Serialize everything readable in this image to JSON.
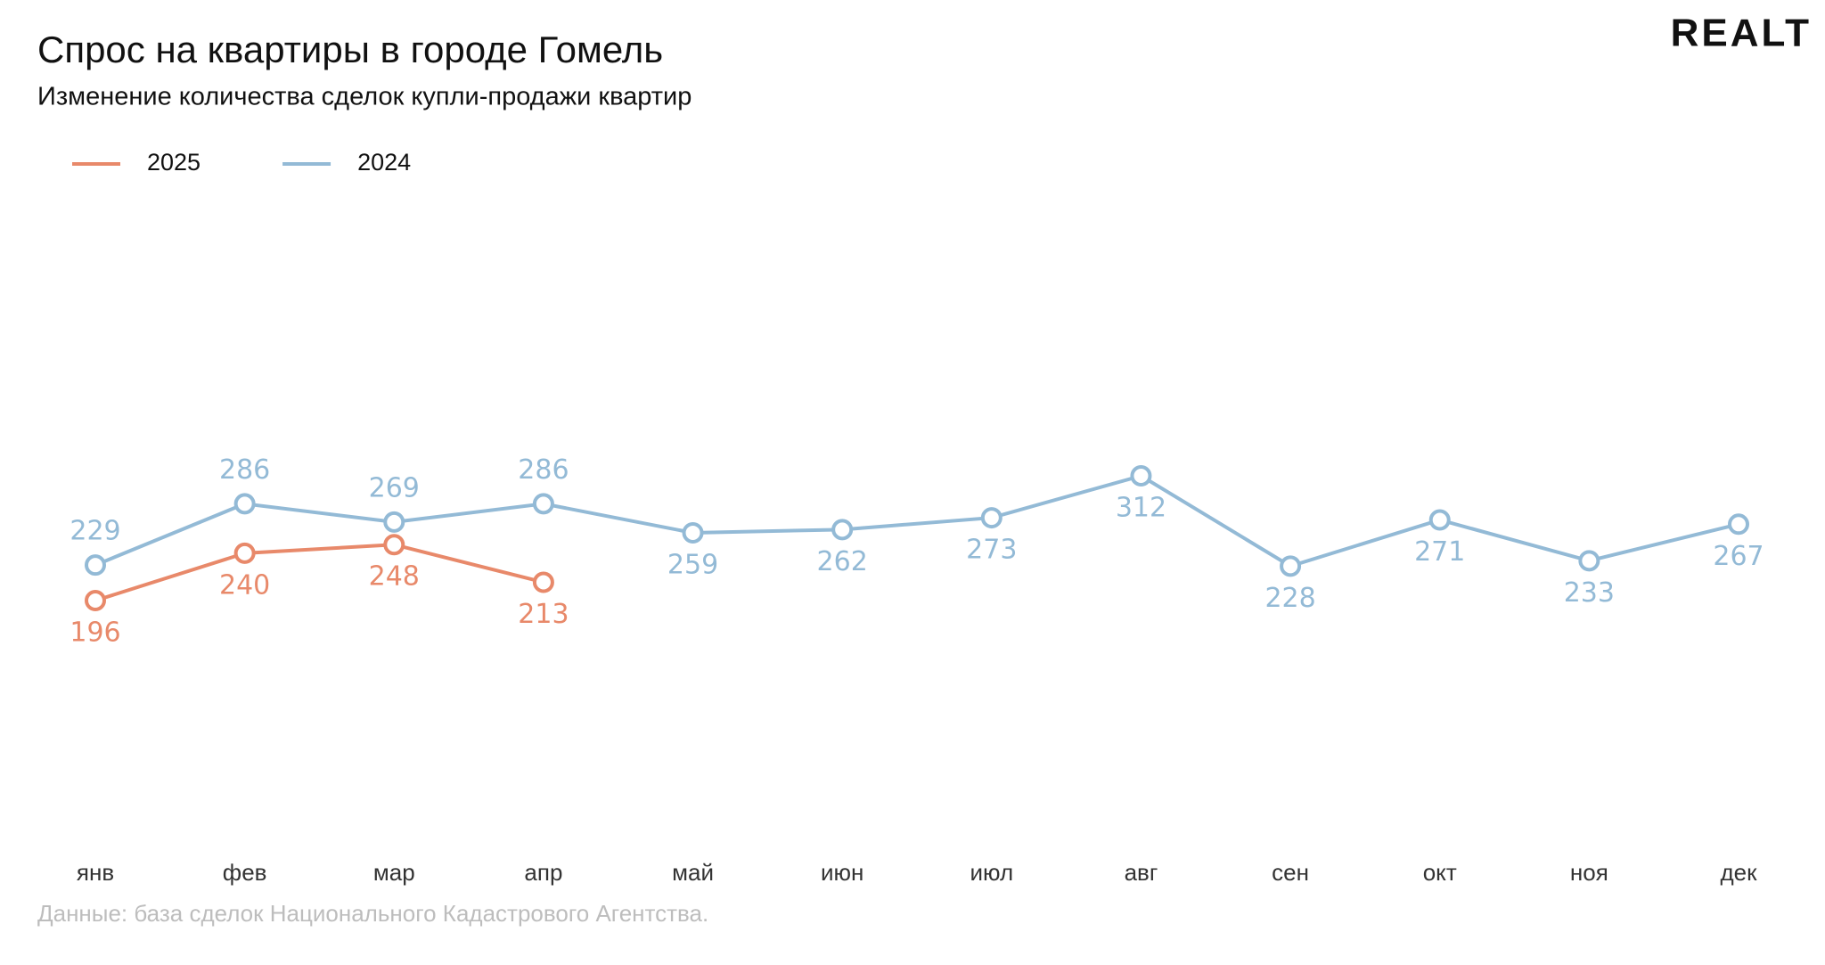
{
  "chart_data": {
    "type": "line",
    "title": "Спрос на квартиры в городе Гомель",
    "subtitle": "Изменение количества сделок купли-продажи квартир",
    "source": "Данные: база сделок Национального Кадастрового Агентства.",
    "logo": "REALT",
    "categories": [
      "янв",
      "фев",
      "мар",
      "апр",
      "май",
      "июн",
      "июл",
      "авг",
      "сен",
      "окт",
      "ноя",
      "дек"
    ],
    "series": [
      {
        "name": "2025",
        "color": "#e8896a",
        "values": [
          196,
          240,
          248,
          213,
          null,
          null,
          null,
          null,
          null,
          null,
          null,
          null
        ]
      },
      {
        "name": "2024",
        "color": "#93bad6",
        "values": [
          229,
          286,
          269,
          286,
          259,
          262,
          273,
          312,
          228,
          271,
          233,
          267
        ]
      }
    ],
    "legend": "top-left"
  }
}
